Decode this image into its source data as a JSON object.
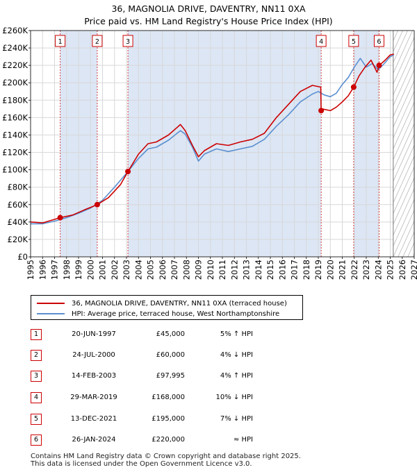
{
  "title_line1": "36, MAGNOLIA DRIVE, DAVENTRY, NN11 0XA",
  "title_line2": "Price paid vs. HM Land Registry's House Price Index (HPI)",
  "colors": {
    "property": "#cc0000",
    "hpi": "#5b8fd0",
    "shade": "#dce6f5",
    "marker_border": "#cc0000"
  },
  "chart_data": {
    "type": "line",
    "ylim": [
      0,
      260000
    ],
    "xlim": [
      1995,
      2027
    ],
    "y_ticks": [
      {
        "v": 0,
        "label": "£0"
      },
      {
        "v": 20000,
        "label": "£20K"
      },
      {
        "v": 40000,
        "label": "£40K"
      },
      {
        "v": 60000,
        "label": "£60K"
      },
      {
        "v": 80000,
        "label": "£80K"
      },
      {
        "v": 100000,
        "label": "£100K"
      },
      {
        "v": 120000,
        "label": "£120K"
      },
      {
        "v": 140000,
        "label": "£140K"
      },
      {
        "v": 160000,
        "label": "£160K"
      },
      {
        "v": 180000,
        "label": "£180K"
      },
      {
        "v": 200000,
        "label": "£200K"
      },
      {
        "v": 220000,
        "label": "£220K"
      },
      {
        "v": 240000,
        "label": "£240K"
      },
      {
        "v": 260000,
        "label": "£260K"
      }
    ],
    "x_ticks": [
      "1995",
      "1996",
      "1997",
      "1998",
      "1999",
      "2000",
      "2001",
      "2002",
      "2003",
      "2004",
      "2005",
      "2006",
      "2007",
      "2008",
      "2009",
      "2010",
      "2011",
      "2012",
      "2013",
      "2014",
      "2015",
      "2016",
      "2017",
      "2018",
      "2019",
      "2020",
      "2021",
      "2022",
      "2023",
      "2024",
      "2025",
      "2026",
      "2027"
    ],
    "forecast_start": 2025.25,
    "shaded_spans": [
      [
        1997.47,
        2000.56
      ],
      [
        2003.12,
        2019.24
      ],
      [
        2021.95,
        2024.07
      ]
    ],
    "series": [
      {
        "name": "36, MAGNOLIA DRIVE, DAVENTRY, NN11 0XA (terraced house)",
        "x": [
          1995.0,
          1996.0,
          1997.47,
          1998.5,
          1999.5,
          2000.56,
          2001.5,
          2002.5,
          2003.12,
          2004.0,
          2004.8,
          2005.5,
          2006.5,
          2007.5,
          2007.9,
          2008.5,
          2009.0,
          2009.5,
          2010.5,
          2011.5,
          2012.5,
          2013.5,
          2014.5,
          2015.5,
          2016.5,
          2017.5,
          2018.5,
          2019.2,
          2019.24,
          2019.3,
          2020.0,
          2020.5,
          2021.0,
          2021.5,
          2021.95,
          2022.4,
          2022.9,
          2023.4,
          2023.9,
          2024.07,
          2024.5,
          2025.0,
          2025.3
        ],
        "y": [
          40000,
          39000,
          45000,
          48000,
          54000,
          60000,
          68000,
          83000,
          97995,
          118000,
          130000,
          132000,
          140000,
          152000,
          145000,
          128000,
          115000,
          122000,
          130000,
          128000,
          132000,
          135000,
          142000,
          160000,
          175000,
          190000,
          197000,
          195000,
          168000,
          170000,
          168000,
          172000,
          178000,
          185000,
          195000,
          208000,
          218000,
          226000,
          212000,
          220000,
          225000,
          232000,
          233000
        ]
      },
      {
        "name": "HPI: Average price, terraced house, West Northamptonshire",
        "x": [
          1995.0,
          1996.0,
          1997.0,
          1998.0,
          1999.0,
          2000.0,
          2001.0,
          2002.0,
          2003.0,
          2004.0,
          2004.8,
          2005.5,
          2006.5,
          2007.5,
          2007.9,
          2008.5,
          2009.0,
          2009.5,
          2010.5,
          2011.5,
          2012.5,
          2013.5,
          2014.5,
          2015.5,
          2016.5,
          2017.5,
          2018.5,
          2019.0,
          2019.5,
          2020.0,
          2020.5,
          2021.0,
          2021.5,
          2022.0,
          2022.5,
          2023.0,
          2023.5,
          2024.0,
          2024.5,
          2025.0,
          2025.3
        ],
        "y": [
          38000,
          38000,
          41000,
          45000,
          50000,
          56000,
          65000,
          80000,
          96000,
          113000,
          124000,
          126000,
          134000,
          145000,
          141000,
          126000,
          110000,
          118000,
          124000,
          121000,
          124000,
          127000,
          135000,
          150000,
          163000,
          178000,
          187000,
          190000,
          186000,
          184000,
          188000,
          198000,
          206000,
          218000,
          228000,
          218000,
          222000,
          215000,
          222000,
          230000,
          232000
        ]
      }
    ],
    "markers": [
      {
        "label": "1",
        "x": 1997.47,
        "y": 45000
      },
      {
        "label": "2",
        "x": 2000.56,
        "y": 60000
      },
      {
        "label": "3",
        "x": 2003.12,
        "y": 97995
      },
      {
        "label": "4",
        "x": 2019.24,
        "y": 168000
      },
      {
        "label": "5",
        "x": 2021.95,
        "y": 195000
      },
      {
        "label": "6",
        "x": 2024.07,
        "y": 220000
      }
    ]
  },
  "legend": {
    "property_label": "36, MAGNOLIA DRIVE, DAVENTRY, NN11 0XA (terraced house)",
    "hpi_label": "HPI: Average price, terraced house, West Northamptonshire"
  },
  "sales": [
    {
      "num": "1",
      "date": "20-JUN-1997",
      "price": "£45,000",
      "hpi": "5% ↑ HPI"
    },
    {
      "num": "2",
      "date": "24-JUL-2000",
      "price": "£60,000",
      "hpi": "4% ↓ HPI"
    },
    {
      "num": "3",
      "date": "14-FEB-2003",
      "price": "£97,995",
      "hpi": "4% ↑ HPI"
    },
    {
      "num": "4",
      "date": "29-MAR-2019",
      "price": "£168,000",
      "hpi": "10% ↓ HPI"
    },
    {
      "num": "5",
      "date": "13-DEC-2021",
      "price": "£195,000",
      "hpi": "7% ↓ HPI"
    },
    {
      "num": "6",
      "date": "26-JAN-2024",
      "price": "£220,000",
      "hpi": "≈ HPI"
    }
  ],
  "footer_line1": "Contains HM Land Registry data © Crown copyright and database right 2025.",
  "footer_line2": "This data is licensed under the Open Government Licence v3.0."
}
